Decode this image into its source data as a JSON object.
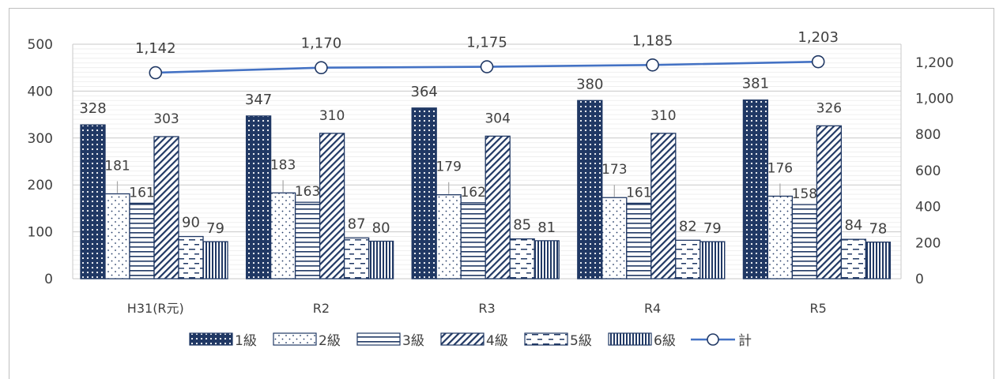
{
  "chart_data": {
    "type": "bar",
    "categories": [
      "H31(R元)",
      "R2",
      "R3",
      "R4",
      "R5"
    ],
    "series": [
      {
        "name": "1級",
        "values": [
          328,
          347,
          364,
          380,
          381
        ],
        "pattern": "dots-dark"
      },
      {
        "name": "2級",
        "values": [
          181,
          183,
          179,
          173,
          176
        ],
        "pattern": "dots-light"
      },
      {
        "name": "3級",
        "values": [
          161,
          163,
          162,
          161,
          158
        ],
        "pattern": "horizontal-lines"
      },
      {
        "name": "4級",
        "values": [
          303,
          310,
          304,
          310,
          326
        ],
        "pattern": "diagonal-lines"
      },
      {
        "name": "5級",
        "values": [
          90,
          87,
          85,
          82,
          84
        ],
        "pattern": "dashes"
      },
      {
        "name": "6級",
        "values": [
          79,
          80,
          81,
          79,
          78
        ],
        "pattern": "vertical-lines"
      }
    ],
    "line_series": {
      "name": "計",
      "values": [
        1142,
        1170,
        1175,
        1185,
        1203
      ],
      "labels": [
        "1,142",
        "1,170",
        "1,175",
        "1,185",
        "1,203"
      ],
      "axis": "right"
    },
    "left_axis": {
      "ylim": [
        0,
        500
      ],
      "ticks": [
        "0",
        "100",
        "200",
        "300",
        "400",
        "500"
      ]
    },
    "right_axis": {
      "ylim": [
        0,
        1300
      ],
      "ticks": [
        "0",
        "200",
        "400",
        "600",
        "800",
        "1,000",
        "1,200"
      ]
    },
    "legend": "bottom",
    "grid": true,
    "colors": {
      "bar": "#203864",
      "line": "#4472c4",
      "grid": "#d9d9d9",
      "text": "#404040"
    }
  }
}
